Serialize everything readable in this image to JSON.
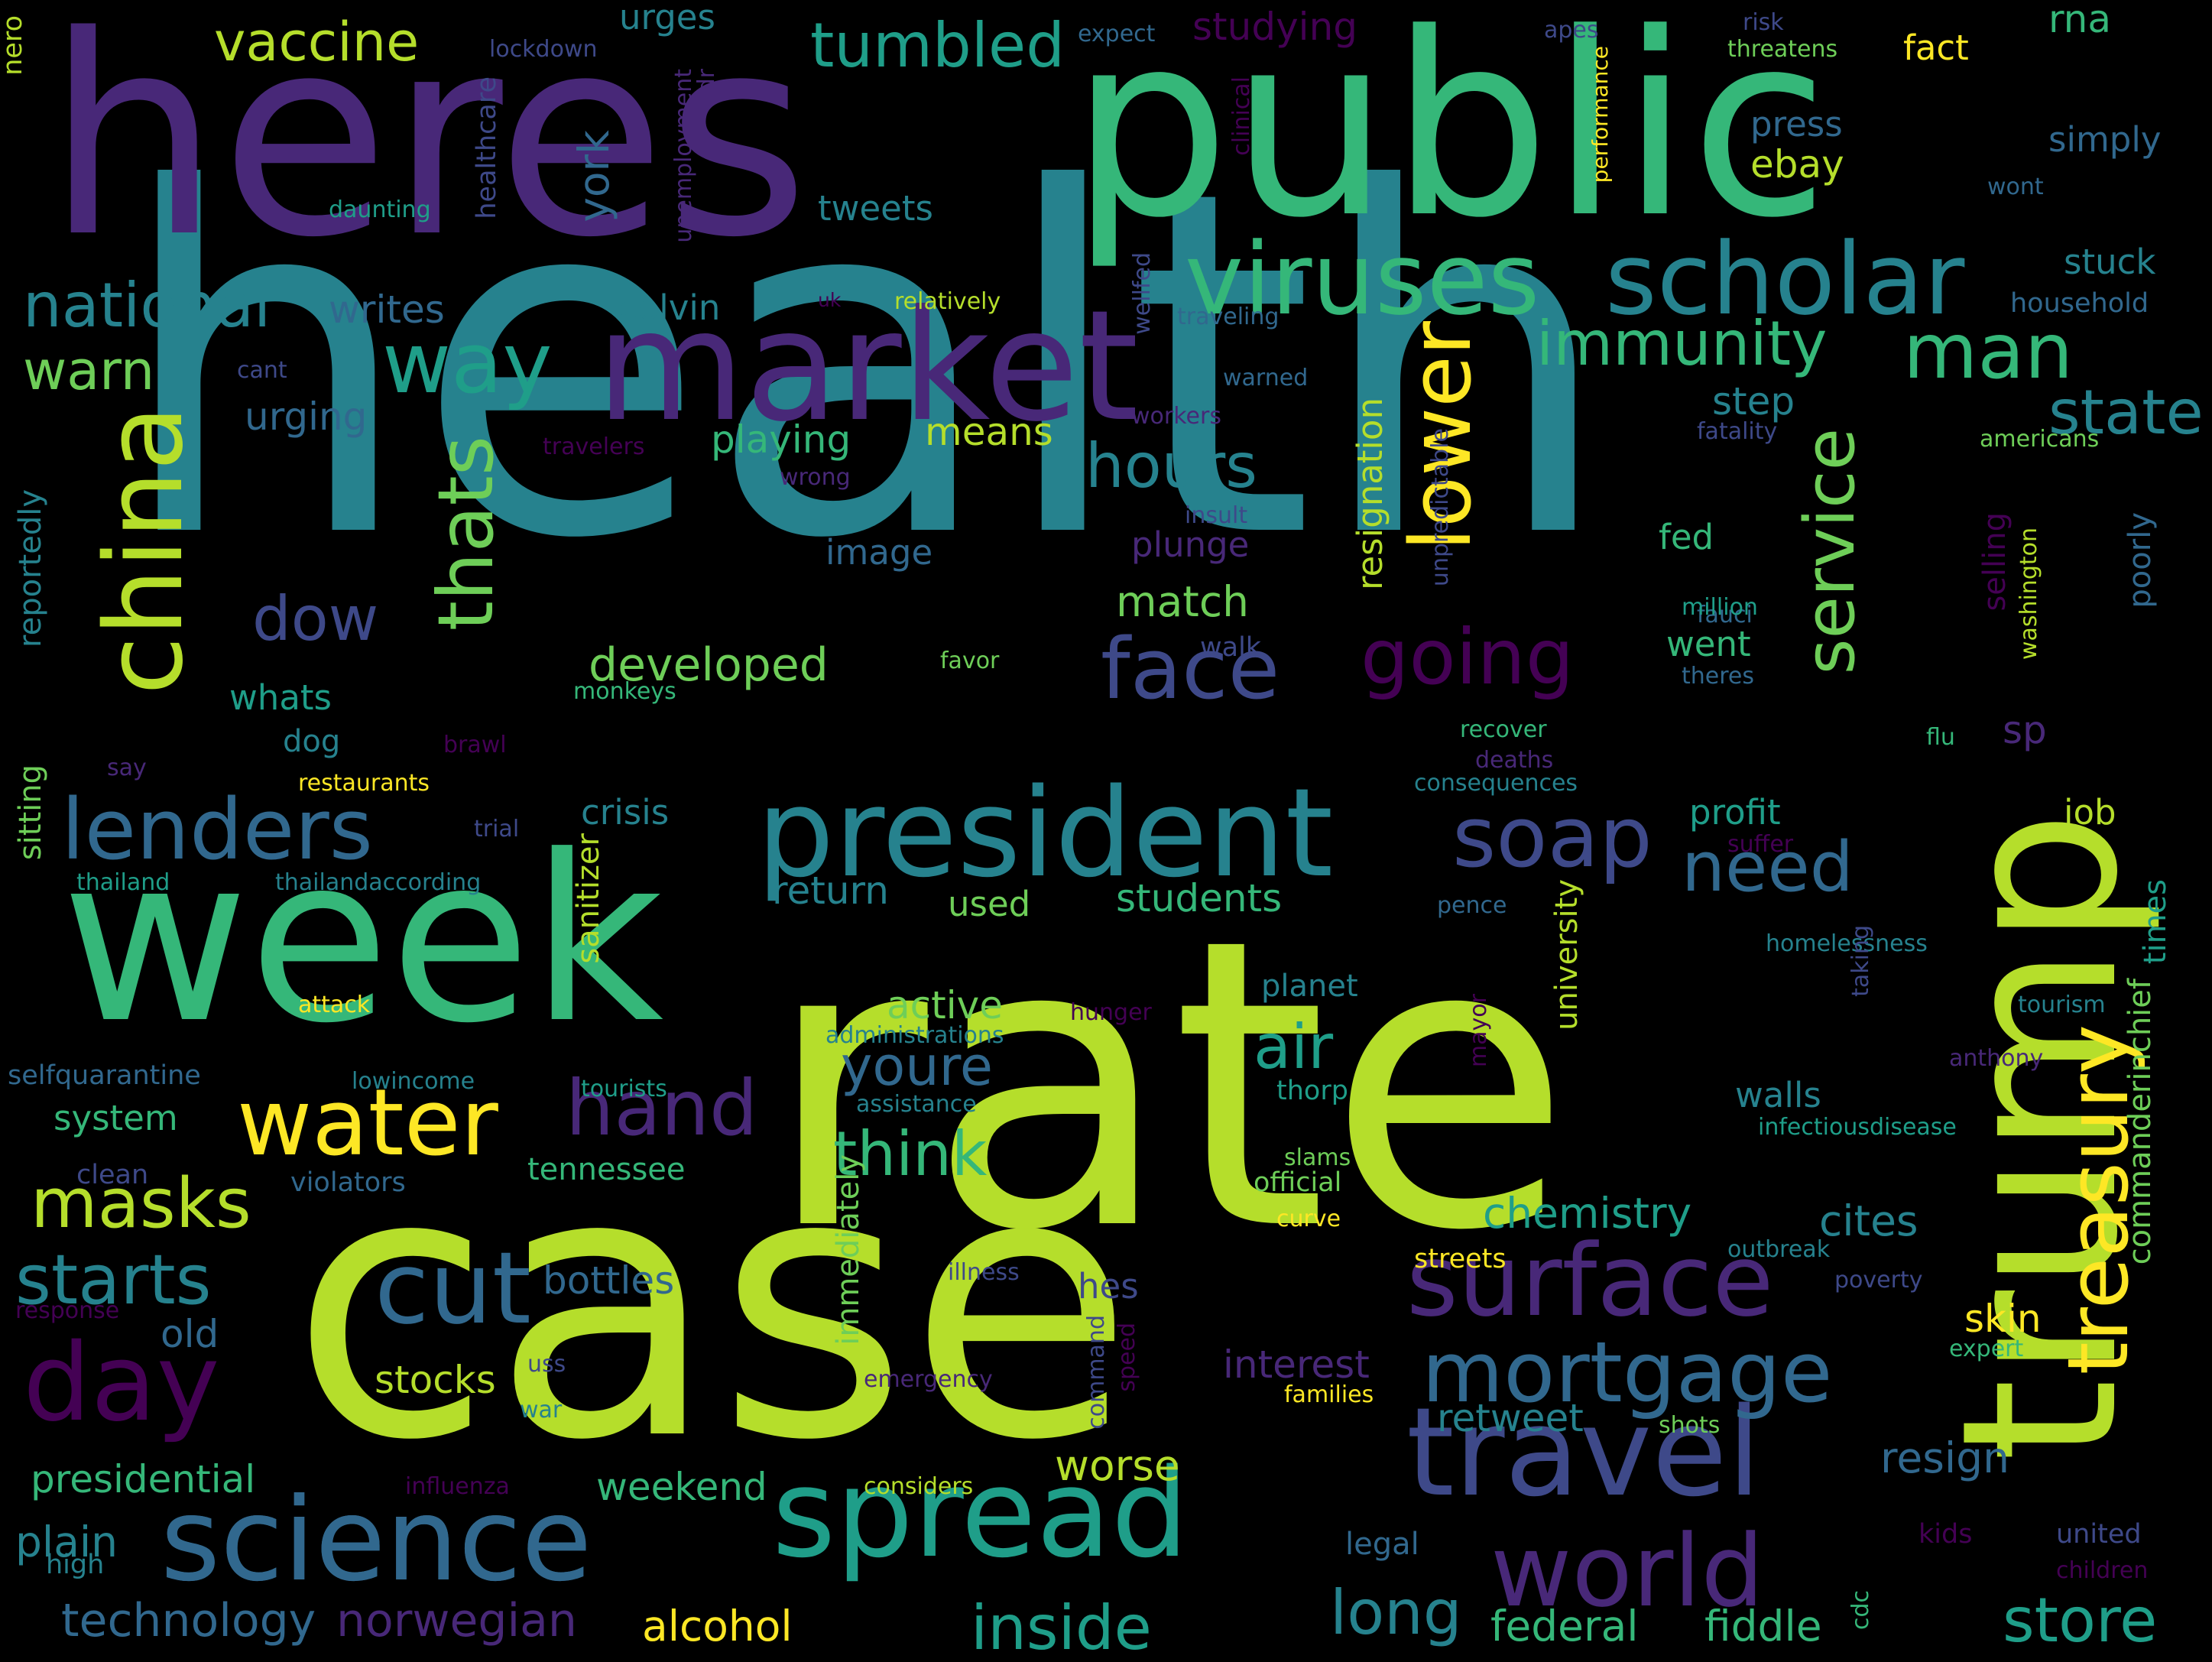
{
  "wordcloud": {
    "background": "#000000",
    "palette": [
      "#440154",
      "#482878",
      "#3e4989",
      "#31688e",
      "#26828e",
      "#1f9e89",
      "#35b779",
      "#6ece58",
      "#b5de2b",
      "#fde725"
    ],
    "words": [
      "health",
      "rate",
      "case",
      "heres",
      "public",
      "week",
      "trump",
      "market",
      "president",
      "spread",
      "science",
      "travel",
      "viruses",
      "scholar",
      "china",
      "surface",
      "world",
      "day",
      "lenders",
      "mortgage",
      "cut",
      "water",
      "face",
      "soap",
      "treasury",
      "going",
      "hand",
      "way",
      "national",
      "lower",
      "service",
      "masks",
      "starts",
      "thats",
      "immunity",
      "man",
      "hours",
      "need",
      "dow",
      "vaccine",
      "tumbled",
      "store",
      "inside",
      "think",
      "long",
      "youre",
      "air",
      "state",
      "warn",
      "developed",
      "science",
      "technology",
      "norwegian",
      "alcohol",
      "federal",
      "fiddle",
      "weekend",
      "presidential",
      "plain",
      "stocks",
      "worse",
      "interest",
      "retweet",
      "resign",
      "chemistry",
      "cites",
      "bottles",
      "hes",
      "old",
      "skin",
      "students",
      "return",
      "used",
      "active",
      "match",
      "means",
      "playing",
      "urging",
      "writes",
      "colvin",
      "tweets",
      "press",
      "ebay",
      "simply",
      "stuck",
      "household",
      "fact",
      "rna",
      "urges",
      "studying",
      "expect",
      "apes",
      "risk",
      "threatens",
      "lockdown",
      "dr",
      "nero",
      "healthcare",
      "unemployment",
      "daunting",
      "clinical",
      "performance",
      "wont",
      "relatively",
      "traveling",
      "wellfed",
      "uk",
      "cant",
      "warned",
      "workers",
      "travelers",
      "wrong",
      "fatality",
      "americans",
      "step",
      "insult",
      "unpredictable",
      "plunge",
      "image",
      "fed",
      "selling",
      "washington",
      "poorly",
      "fauci",
      "million",
      "went",
      "theres",
      "whats",
      "walk",
      "favor",
      "monkeys",
      "dog",
      "brawl",
      "restaurants",
      "say",
      "recover",
      "deaths",
      "flu",
      "consequences",
      "sp",
      "resignation",
      "reportedly",
      "sitting",
      "crisis",
      "trial",
      "thailand",
      "thailandaccording",
      "profit",
      "job",
      "suffer",
      "pence",
      "sanitizer",
      "university",
      "times",
      "commanderinchief",
      "homelessness",
      "taking",
      "tourism",
      "planet",
      "attack",
      "hunger",
      "administrations",
      "assistance",
      "selfquarantine",
      "lowincome",
      "tourists",
      "thorp",
      "anthony",
      "mayor",
      "walls",
      "infectiousdisease",
      "system",
      "clean",
      "violators",
      "tennessee",
      "slams",
      "official",
      "curve",
      "outbreak",
      "streets",
      "immediately",
      "illness",
      "poverty",
      "response",
      "command",
      "speed",
      "uss",
      "emergency",
      "expert",
      "families",
      "war",
      "shots",
      "considers",
      "influenza",
      "legal",
      "kids",
      "united",
      "children",
      "high",
      "cdc",
      "york"
    ]
  }
}
